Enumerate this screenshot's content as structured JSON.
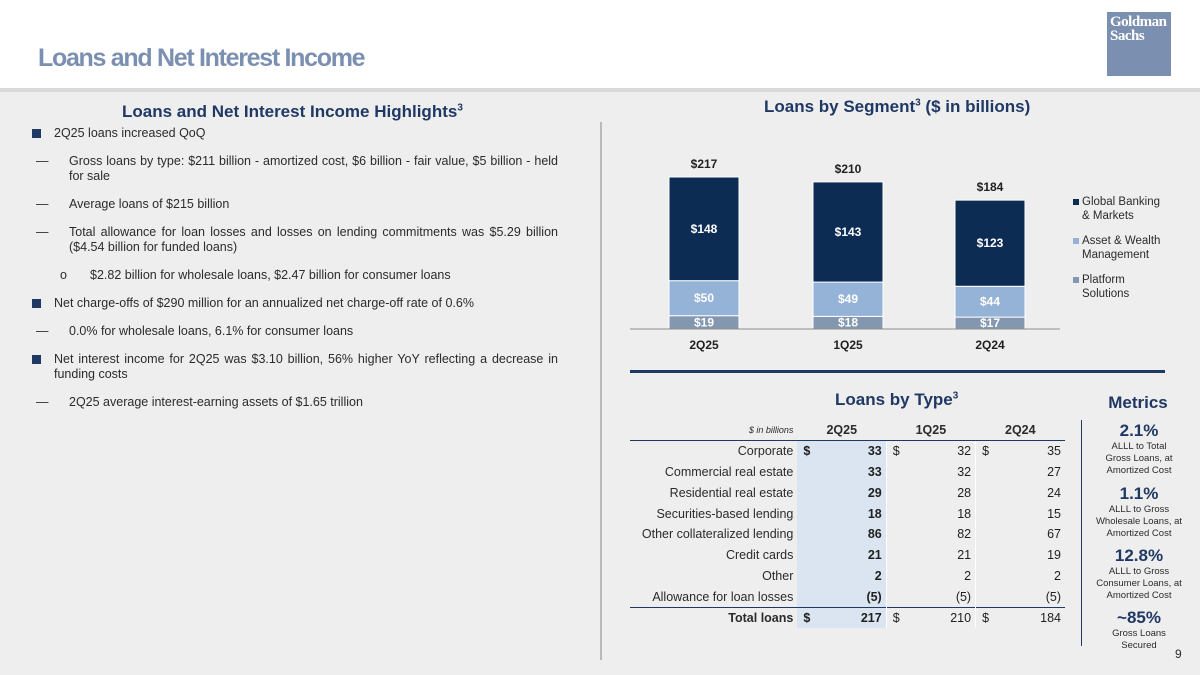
{
  "header": {
    "title": "Loans and Net Interest Income",
    "logo_line1": "Goldman",
    "logo_line2": "Sachs"
  },
  "highlights": {
    "title": "Loans and Net Interest Income Highlights",
    "title_sup": "3",
    "bullets": [
      {
        "level": 1,
        "text": "2Q25 loans increased QoQ"
      },
      {
        "level": 2,
        "marker": "—",
        "text": "Gross loans by type: $211 billion - amortized cost, $6 billion - fair value, $5 billion - held for sale"
      },
      {
        "level": 2,
        "marker": "—",
        "text": "Average loans of $215 billion"
      },
      {
        "level": 2,
        "marker": "—",
        "text": "Total allowance for loan losses and losses on lending commitments was $5.29 billion ($4.54 billion for funded loans)"
      },
      {
        "level": 3,
        "marker": "o",
        "text": "$2.82 billion for wholesale loans, $2.47 billion for consumer loans"
      },
      {
        "level": 1,
        "text": "Net charge-offs of $290 million for an annualized net charge-off rate of 0.6%"
      },
      {
        "level": 2,
        "marker": "—",
        "text": "0.0% for wholesale loans, 6.1% for consumer loans"
      },
      {
        "level": 1,
        "text": "Net interest income for 2Q25 was $3.10 billion, 56% higher YoY reflecting a decrease in funding costs"
      },
      {
        "level": 2,
        "marker": "—",
        "text": "2Q25 average interest-earning assets of $1.65 trillion"
      }
    ]
  },
  "segment": {
    "title": "Loans by Segment",
    "title_sup": "3",
    "title_suffix": " ($ in billions)"
  },
  "chart_data": {
    "type": "bar",
    "stacked": true,
    "categories": [
      "2Q25",
      "1Q25",
      "2Q24"
    ],
    "series": [
      {
        "name": "Platform Solutions",
        "values": [
          19,
          18,
          17
        ],
        "labels": [
          "$19",
          "$18",
          "$17"
        ],
        "color": "#8497b0"
      },
      {
        "name": "Asset & Wealth Management",
        "values": [
          50,
          49,
          44
        ],
        "labels": [
          "$50",
          "$49",
          "$44"
        ],
        "color": "#95b3d7"
      },
      {
        "name": "Global Banking & Markets",
        "values": [
          148,
          143,
          123
        ],
        "labels": [
          "$148",
          "$143",
          "$123"
        ],
        "color": "#0c2c54"
      }
    ],
    "totals": [
      "$217",
      "$210",
      "$184"
    ],
    "ylim": [
      0,
      217
    ],
    "legend_position": "right",
    "legend_order": [
      "Global Banking & Markets",
      "Asset & Wealth Management",
      "Platform Solutions"
    ],
    "legend_lines": {
      "Global Banking & Markets": [
        "Global Banking",
        "& Markets"
      ],
      "Asset & Wealth Management": [
        "Asset & Wealth",
        "Management"
      ],
      "Platform Solutions": [
        "Platform",
        "Solutions"
      ]
    }
  },
  "loans_by_type": {
    "title": "Loans by Type",
    "title_sup": "3",
    "unit_label": "$ in billions",
    "columns": [
      "2Q25",
      "1Q25",
      "2Q24"
    ],
    "rows": [
      {
        "label": "Corporate",
        "values": [
          "33",
          "32",
          "35"
        ],
        "dollar": true
      },
      {
        "label": "Commercial real estate",
        "values": [
          "33",
          "32",
          "27"
        ],
        "dollar": false
      },
      {
        "label": "Residential real estate",
        "values": [
          "29",
          "28",
          "24"
        ],
        "dollar": false
      },
      {
        "label": "Securities-based lending",
        "values": [
          "18",
          "18",
          "15"
        ],
        "dollar": false
      },
      {
        "label": "Other collateralized lending",
        "values": [
          "86",
          "82",
          "67"
        ],
        "dollar": false
      },
      {
        "label": "Credit cards",
        "values": [
          "21",
          "21",
          "19"
        ],
        "dollar": false
      },
      {
        "label": "Other",
        "values": [
          "2",
          "2",
          "2"
        ],
        "dollar": false
      },
      {
        "label": "Allowance for loan losses",
        "values": [
          "(5)",
          "(5)",
          "(5)"
        ],
        "dollar": false
      }
    ],
    "total": {
      "label": "Total loans",
      "values": [
        "217",
        "210",
        "184"
      ],
      "dollar": true
    }
  },
  "metrics": {
    "title": "Metrics",
    "items": [
      {
        "value": "2.1%",
        "lines": [
          "ALLL to Total",
          "Gross Loans, at",
          "Amortized Cost"
        ]
      },
      {
        "value": "1.1%",
        "lines": [
          "ALLL to Gross",
          "Wholesale Loans, at",
          "Amortized Cost"
        ]
      },
      {
        "value": "12.8%",
        "lines": [
          "ALLL to Gross",
          "Consumer Loans, at",
          "Amortized Cost"
        ]
      },
      {
        "value": "~85%",
        "lines": [
          "Gross Loans",
          "Secured"
        ]
      }
    ]
  },
  "page_number": "9"
}
